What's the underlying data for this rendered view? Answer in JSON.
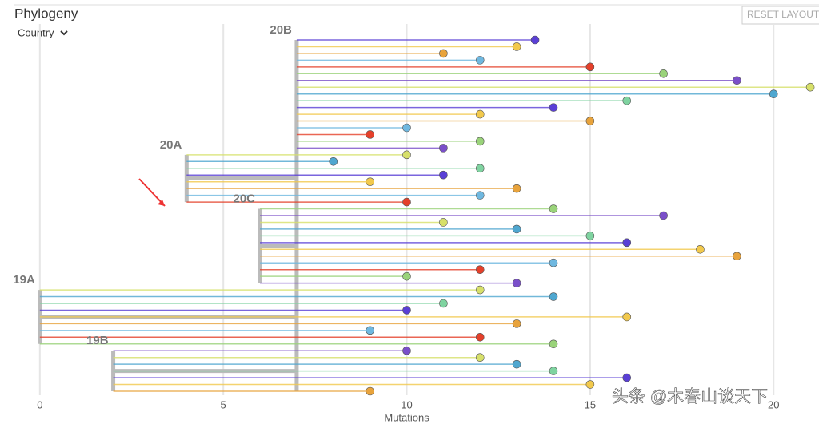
{
  "header": {
    "title": "Phylogeny",
    "color_by": "Country",
    "reset": "RESET LAYOUT"
  },
  "chart_data": {
    "type": "tree",
    "x_label": "Mutations",
    "xlim": [
      -0.65,
      21.15
    ],
    "xticks": [
      0,
      5,
      10,
      15,
      20
    ],
    "grid": true,
    "palette": [
      "#5a3fd6",
      "#f2c94c",
      "#e8a33c",
      "#6fb8e0",
      "#e5402a",
      "#9ad37a",
      "#7a4fc9",
      "#d7e06a",
      "#4fa7d0",
      "#7fd3a0"
    ],
    "clades": [
      {
        "name": "20B",
        "x": 7,
        "tips": [
          13.5,
          13,
          11,
          12,
          15,
          17,
          19,
          21,
          20,
          16,
          14,
          12,
          15,
          10,
          9,
          12,
          11
        ]
      },
      {
        "name": "20A",
        "x": 4,
        "tips": [
          10,
          8,
          12,
          11,
          9,
          13,
          12,
          10
        ]
      },
      {
        "name": "20C",
        "x": 6,
        "tips": [
          14,
          17,
          11,
          13,
          15,
          16,
          18,
          19,
          14,
          12,
          10,
          13
        ]
      },
      {
        "name": "19A",
        "x": 0,
        "tips": [
          12,
          14,
          11,
          10,
          16,
          13,
          9,
          12,
          14
        ]
      },
      {
        "name": "19B",
        "x": 2,
        "tips": [
          10,
          12,
          13,
          14,
          16,
          15,
          9
        ]
      }
    ]
  },
  "watermark": "头条 @木春山谈天下"
}
